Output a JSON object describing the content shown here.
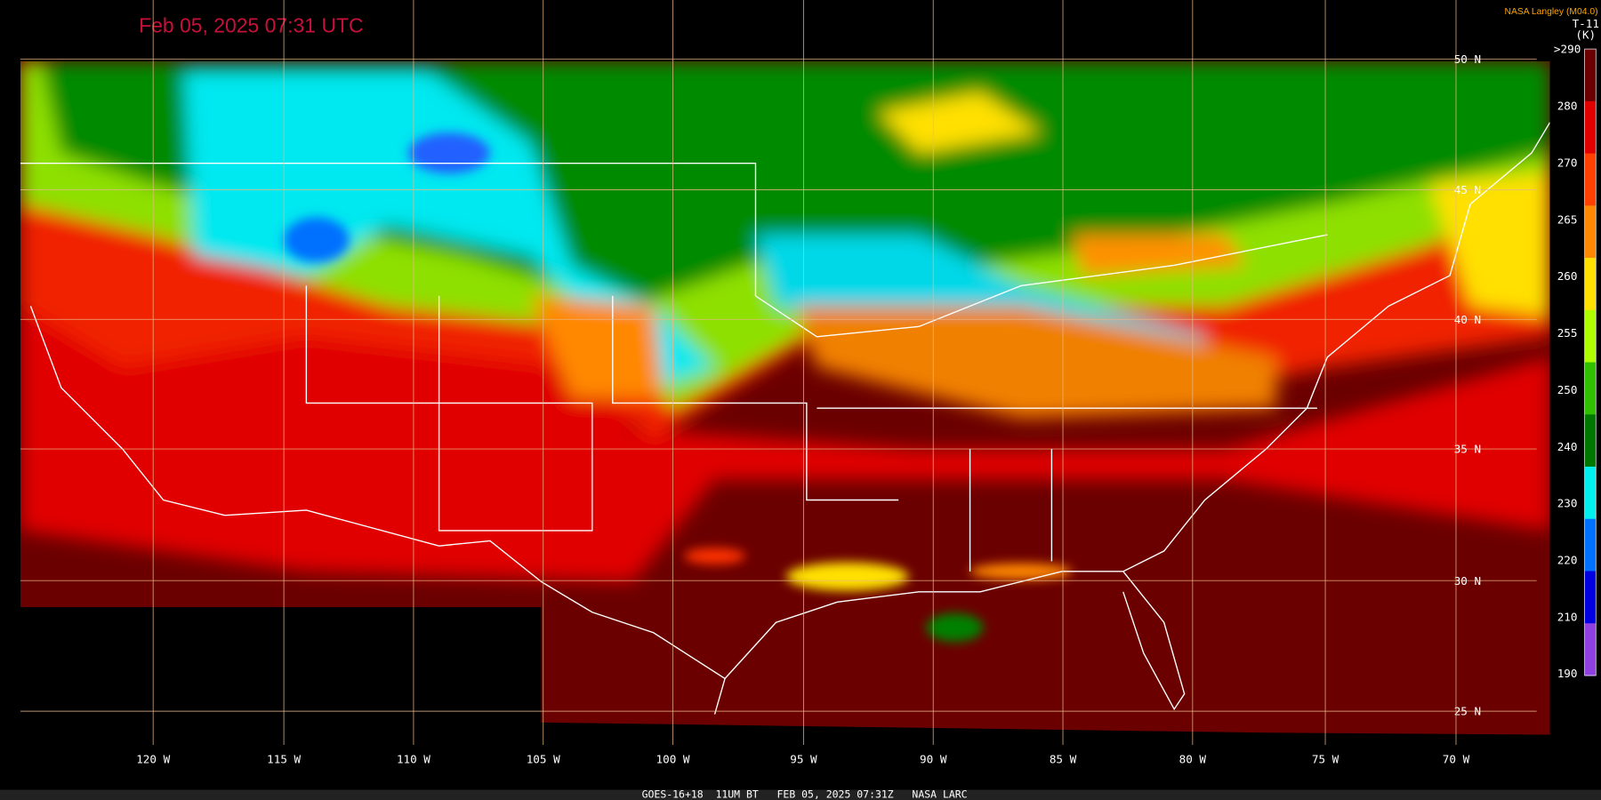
{
  "title": "Feb 05, 2025 07:31 UTC",
  "credit": "NASA Langley (M04.0)",
  "colorbar": {
    "title": "T-11",
    "unit": "(K)",
    "labels": [
      ">290",
      "280",
      "270",
      "265",
      "260",
      "255",
      "250",
      "240",
      "230",
      "220",
      "210",
      "190"
    ]
  },
  "latitudes": [
    "50 N",
    "45 N",
    "40 N",
    "35 N",
    "30 N",
    "25 N"
  ],
  "longitudes": [
    "120 W",
    "115 W",
    "110 W",
    "105 W",
    "100 W",
    "95 W",
    "90 W",
    "85 W",
    "80 W",
    "75 W",
    "70 W"
  ],
  "footer": "GOES-16+18  11UM BT   FEB 05, 2025 07:31Z   NASA LARC"
}
